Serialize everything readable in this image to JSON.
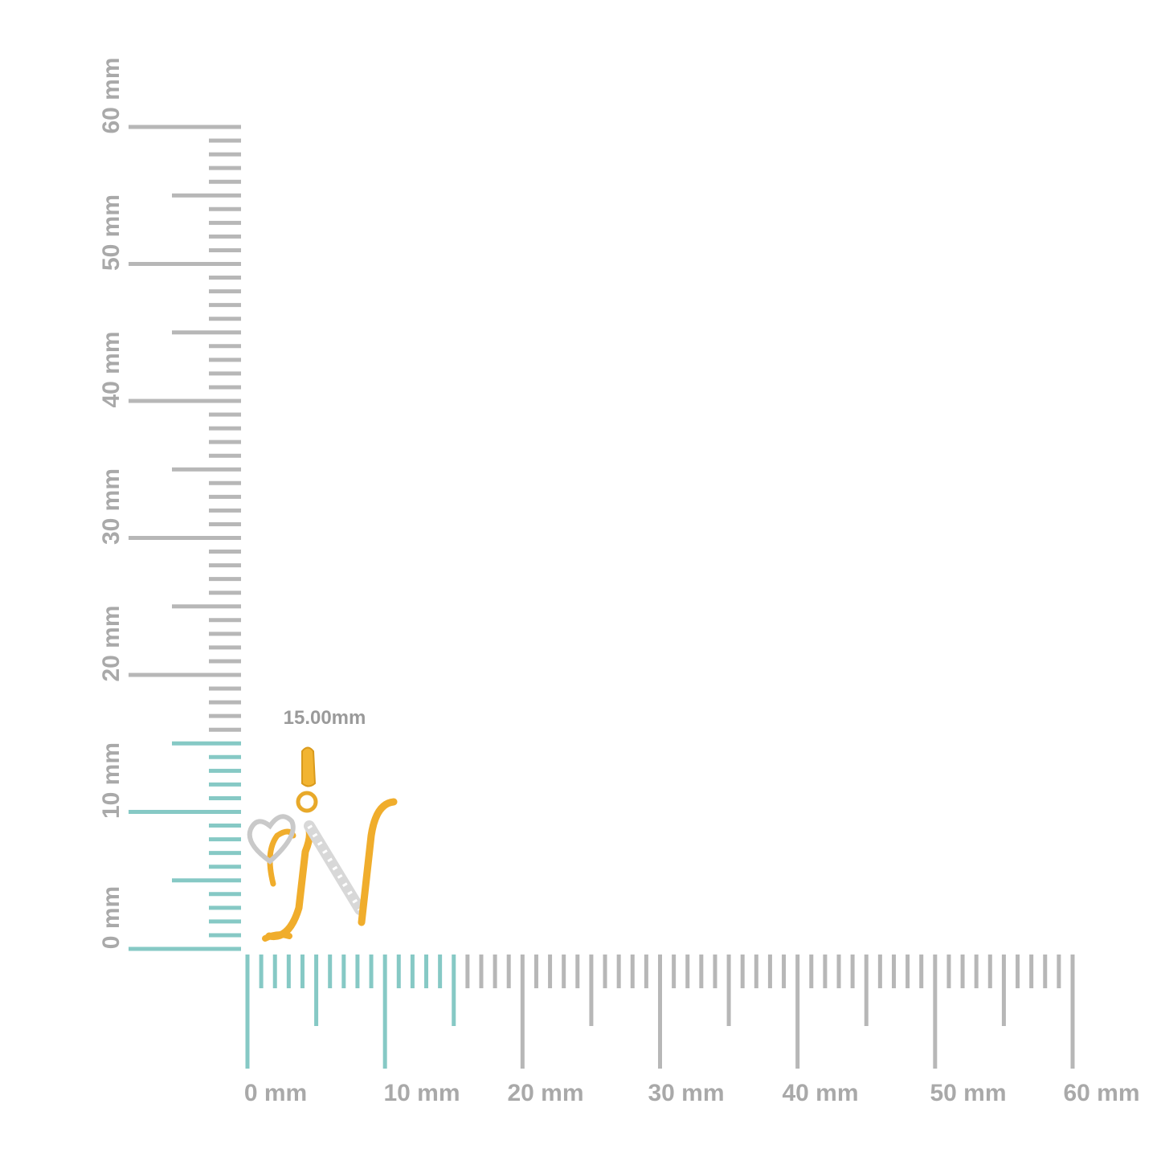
{
  "vertical_ruler": {
    "labels": [
      "0 mm",
      "10 mm",
      "20 mm",
      "30 mm",
      "40 mm",
      "50 mm",
      "60 mm"
    ]
  },
  "horizontal_ruler": {
    "labels": [
      "0 mm",
      "10 mm",
      "20 mm",
      "30 mm",
      "40 mm",
      "50 mm",
      "60 mm"
    ]
  },
  "measurement": {
    "label": "15.00mm"
  }
}
